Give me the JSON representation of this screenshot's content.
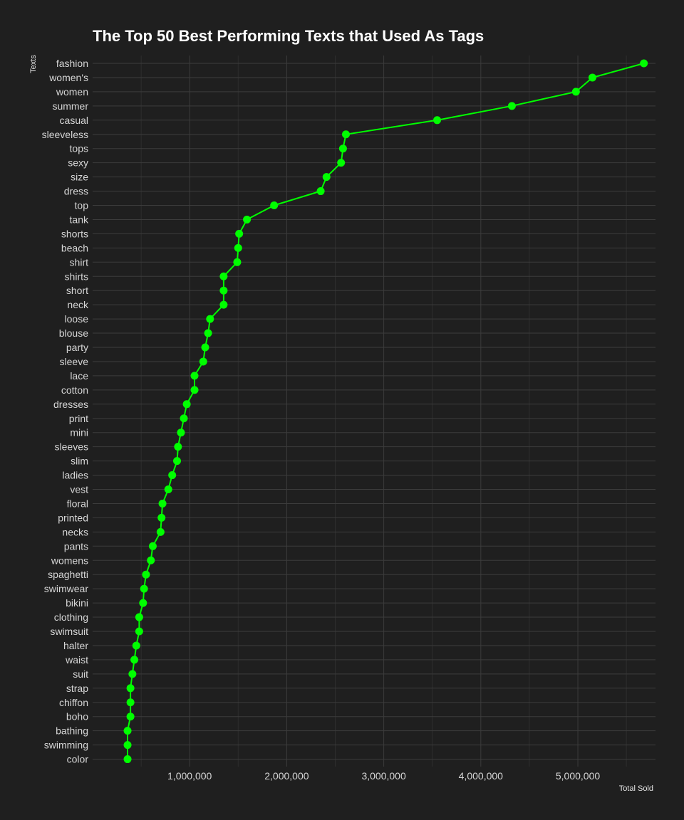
{
  "chart_data": {
    "type": "line",
    "title": "The Top 50 Best Performing Texts that Used As Tags",
    "xlabel": "Total Sold",
    "ylabel": "Texts",
    "xlim": [
      0,
      5800000
    ],
    "x_ticks": [
      1000000,
      2000000,
      3000000,
      4000000,
      5000000
    ],
    "x_tick_labels": [
      "1,000,000",
      "2,000,000",
      "3,000,000",
      "4,000,000",
      "5,000,000"
    ],
    "grid": true,
    "legend": "none",
    "colors": {
      "series": "#00ff00",
      "background": "#1f1f1f",
      "grid": "#3c3c3c",
      "text": "#d6d6d6"
    },
    "categories": [
      "fashion",
      "women's",
      "women",
      "summer",
      "casual",
      "sleeveless",
      "tops",
      "sexy",
      "size",
      "dress",
      "top",
      "tank",
      "shorts",
      "beach",
      "shirt",
      "shirts",
      "short",
      "neck",
      "loose",
      "blouse",
      "party",
      "sleeve",
      "lace",
      "cotton",
      "dresses",
      "print",
      "mini",
      "sleeves",
      "slim",
      "ladies",
      "vest",
      "floral",
      "printed",
      "necks",
      "pants",
      "womens",
      "spaghetti",
      "swimwear",
      "bikini",
      "clothing",
      "swimsuit",
      "halter",
      "waist",
      "suit",
      "strap",
      "chiffon",
      "boho",
      "bathing",
      "swimming",
      "color"
    ],
    "values": [
      5680000,
      5150000,
      4980000,
      4320000,
      3550000,
      2610000,
      2580000,
      2560000,
      2410000,
      2350000,
      1870000,
      1590000,
      1510000,
      1500000,
      1490000,
      1350000,
      1350000,
      1350000,
      1210000,
      1190000,
      1160000,
      1140000,
      1050000,
      1050000,
      970000,
      940000,
      910000,
      880000,
      870000,
      820000,
      780000,
      720000,
      710000,
      700000,
      620000,
      600000,
      550000,
      530000,
      520000,
      480000,
      480000,
      450000,
      430000,
      410000,
      390000,
      390000,
      390000,
      360000,
      360000,
      360000
    ]
  }
}
